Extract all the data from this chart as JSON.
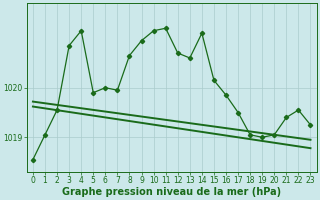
{
  "title": "Graphe pression niveau de la mer (hPa)",
  "xlabel": "Graphe pression niveau de la mer (hPa)",
  "bg_color": "#cce8ea",
  "grid_color": "#aacccc",
  "line_color": "#1a6b1a",
  "hours": [
    0,
    1,
    2,
    3,
    4,
    5,
    6,
    7,
    8,
    9,
    10,
    11,
    12,
    13,
    14,
    15,
    16,
    17,
    18,
    19,
    20,
    21,
    22,
    23
  ],
  "main_line": [
    1018.55,
    1019.05,
    1019.55,
    1020.85,
    1021.15,
    1019.9,
    1020.0,
    1019.95,
    1020.65,
    1020.95,
    1021.15,
    1021.2,
    1020.7,
    1020.6,
    1021.1,
    1020.15,
    1019.85,
    1019.5,
    1019.05,
    1019.0,
    1019.05,
    1019.4,
    1019.55,
    1019.25
  ],
  "trend1_x": [
    0,
    23
  ],
  "trend1_y": [
    1019.62,
    1018.78
  ],
  "trend2_x": [
    0,
    23
  ],
  "trend2_y": [
    1019.72,
    1018.95
  ],
  "yticks": [
    1019,
    1020
  ],
  "ylim": [
    1018.3,
    1021.7
  ],
  "xlim": [
    -0.5,
    23.5
  ],
  "xticks": [
    0,
    1,
    2,
    3,
    4,
    5,
    6,
    7,
    8,
    9,
    10,
    11,
    12,
    13,
    14,
    15,
    16,
    17,
    18,
    19,
    20,
    21,
    22,
    23
  ],
  "tick_fontsize": 5.5,
  "xlabel_fontsize": 7,
  "marker": "D",
  "markersize": 2.2,
  "linewidth": 0.9,
  "trend_linewidth": 1.4
}
